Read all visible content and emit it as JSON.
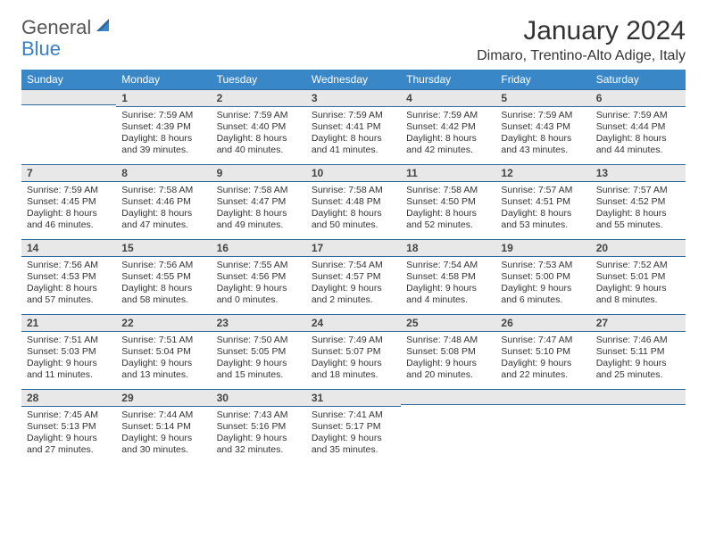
{
  "logo": {
    "general": "General",
    "blue": "Blue"
  },
  "title": "January 2024",
  "location": "Dimaro, Trentino-Alto Adige, Italy",
  "colors": {
    "header_bg": "#3a87c7",
    "header_border": "#2a6aa0",
    "daynum_bg": "#e8e8e8",
    "text": "#333333",
    "logo_gray": "#555555",
    "logo_blue": "#3a7fc4"
  },
  "day_names": [
    "Sunday",
    "Monday",
    "Tuesday",
    "Wednesday",
    "Thursday",
    "Friday",
    "Saturday"
  ],
  "weeks": [
    [
      {
        "num": "",
        "sunrise": "",
        "sunset": "",
        "daylight1": "",
        "daylight2": ""
      },
      {
        "num": "1",
        "sunrise": "Sunrise: 7:59 AM",
        "sunset": "Sunset: 4:39 PM",
        "daylight1": "Daylight: 8 hours",
        "daylight2": "and 39 minutes."
      },
      {
        "num": "2",
        "sunrise": "Sunrise: 7:59 AM",
        "sunset": "Sunset: 4:40 PM",
        "daylight1": "Daylight: 8 hours",
        "daylight2": "and 40 minutes."
      },
      {
        "num": "3",
        "sunrise": "Sunrise: 7:59 AM",
        "sunset": "Sunset: 4:41 PM",
        "daylight1": "Daylight: 8 hours",
        "daylight2": "and 41 minutes."
      },
      {
        "num": "4",
        "sunrise": "Sunrise: 7:59 AM",
        "sunset": "Sunset: 4:42 PM",
        "daylight1": "Daylight: 8 hours",
        "daylight2": "and 42 minutes."
      },
      {
        "num": "5",
        "sunrise": "Sunrise: 7:59 AM",
        "sunset": "Sunset: 4:43 PM",
        "daylight1": "Daylight: 8 hours",
        "daylight2": "and 43 minutes."
      },
      {
        "num": "6",
        "sunrise": "Sunrise: 7:59 AM",
        "sunset": "Sunset: 4:44 PM",
        "daylight1": "Daylight: 8 hours",
        "daylight2": "and 44 minutes."
      }
    ],
    [
      {
        "num": "7",
        "sunrise": "Sunrise: 7:59 AM",
        "sunset": "Sunset: 4:45 PM",
        "daylight1": "Daylight: 8 hours",
        "daylight2": "and 46 minutes."
      },
      {
        "num": "8",
        "sunrise": "Sunrise: 7:58 AM",
        "sunset": "Sunset: 4:46 PM",
        "daylight1": "Daylight: 8 hours",
        "daylight2": "and 47 minutes."
      },
      {
        "num": "9",
        "sunrise": "Sunrise: 7:58 AM",
        "sunset": "Sunset: 4:47 PM",
        "daylight1": "Daylight: 8 hours",
        "daylight2": "and 49 minutes."
      },
      {
        "num": "10",
        "sunrise": "Sunrise: 7:58 AM",
        "sunset": "Sunset: 4:48 PM",
        "daylight1": "Daylight: 8 hours",
        "daylight2": "and 50 minutes."
      },
      {
        "num": "11",
        "sunrise": "Sunrise: 7:58 AM",
        "sunset": "Sunset: 4:50 PM",
        "daylight1": "Daylight: 8 hours",
        "daylight2": "and 52 minutes."
      },
      {
        "num": "12",
        "sunrise": "Sunrise: 7:57 AM",
        "sunset": "Sunset: 4:51 PM",
        "daylight1": "Daylight: 8 hours",
        "daylight2": "and 53 minutes."
      },
      {
        "num": "13",
        "sunrise": "Sunrise: 7:57 AM",
        "sunset": "Sunset: 4:52 PM",
        "daylight1": "Daylight: 8 hours",
        "daylight2": "and 55 minutes."
      }
    ],
    [
      {
        "num": "14",
        "sunrise": "Sunrise: 7:56 AM",
        "sunset": "Sunset: 4:53 PM",
        "daylight1": "Daylight: 8 hours",
        "daylight2": "and 57 minutes."
      },
      {
        "num": "15",
        "sunrise": "Sunrise: 7:56 AM",
        "sunset": "Sunset: 4:55 PM",
        "daylight1": "Daylight: 8 hours",
        "daylight2": "and 58 minutes."
      },
      {
        "num": "16",
        "sunrise": "Sunrise: 7:55 AM",
        "sunset": "Sunset: 4:56 PM",
        "daylight1": "Daylight: 9 hours",
        "daylight2": "and 0 minutes."
      },
      {
        "num": "17",
        "sunrise": "Sunrise: 7:54 AM",
        "sunset": "Sunset: 4:57 PM",
        "daylight1": "Daylight: 9 hours",
        "daylight2": "and 2 minutes."
      },
      {
        "num": "18",
        "sunrise": "Sunrise: 7:54 AM",
        "sunset": "Sunset: 4:58 PM",
        "daylight1": "Daylight: 9 hours",
        "daylight2": "and 4 minutes."
      },
      {
        "num": "19",
        "sunrise": "Sunrise: 7:53 AM",
        "sunset": "Sunset: 5:00 PM",
        "daylight1": "Daylight: 9 hours",
        "daylight2": "and 6 minutes."
      },
      {
        "num": "20",
        "sunrise": "Sunrise: 7:52 AM",
        "sunset": "Sunset: 5:01 PM",
        "daylight1": "Daylight: 9 hours",
        "daylight2": "and 8 minutes."
      }
    ],
    [
      {
        "num": "21",
        "sunrise": "Sunrise: 7:51 AM",
        "sunset": "Sunset: 5:03 PM",
        "daylight1": "Daylight: 9 hours",
        "daylight2": "and 11 minutes."
      },
      {
        "num": "22",
        "sunrise": "Sunrise: 7:51 AM",
        "sunset": "Sunset: 5:04 PM",
        "daylight1": "Daylight: 9 hours",
        "daylight2": "and 13 minutes."
      },
      {
        "num": "23",
        "sunrise": "Sunrise: 7:50 AM",
        "sunset": "Sunset: 5:05 PM",
        "daylight1": "Daylight: 9 hours",
        "daylight2": "and 15 minutes."
      },
      {
        "num": "24",
        "sunrise": "Sunrise: 7:49 AM",
        "sunset": "Sunset: 5:07 PM",
        "daylight1": "Daylight: 9 hours",
        "daylight2": "and 18 minutes."
      },
      {
        "num": "25",
        "sunrise": "Sunrise: 7:48 AM",
        "sunset": "Sunset: 5:08 PM",
        "daylight1": "Daylight: 9 hours",
        "daylight2": "and 20 minutes."
      },
      {
        "num": "26",
        "sunrise": "Sunrise: 7:47 AM",
        "sunset": "Sunset: 5:10 PM",
        "daylight1": "Daylight: 9 hours",
        "daylight2": "and 22 minutes."
      },
      {
        "num": "27",
        "sunrise": "Sunrise: 7:46 AM",
        "sunset": "Sunset: 5:11 PM",
        "daylight1": "Daylight: 9 hours",
        "daylight2": "and 25 minutes."
      }
    ],
    [
      {
        "num": "28",
        "sunrise": "Sunrise: 7:45 AM",
        "sunset": "Sunset: 5:13 PM",
        "daylight1": "Daylight: 9 hours",
        "daylight2": "and 27 minutes."
      },
      {
        "num": "29",
        "sunrise": "Sunrise: 7:44 AM",
        "sunset": "Sunset: 5:14 PM",
        "daylight1": "Daylight: 9 hours",
        "daylight2": "and 30 minutes."
      },
      {
        "num": "30",
        "sunrise": "Sunrise: 7:43 AM",
        "sunset": "Sunset: 5:16 PM",
        "daylight1": "Daylight: 9 hours",
        "daylight2": "and 32 minutes."
      },
      {
        "num": "31",
        "sunrise": "Sunrise: 7:41 AM",
        "sunset": "Sunset: 5:17 PM",
        "daylight1": "Daylight: 9 hours",
        "daylight2": "and 35 minutes."
      },
      {
        "num": "",
        "sunrise": "",
        "sunset": "",
        "daylight1": "",
        "daylight2": ""
      },
      {
        "num": "",
        "sunrise": "",
        "sunset": "",
        "daylight1": "",
        "daylight2": ""
      },
      {
        "num": "",
        "sunrise": "",
        "sunset": "",
        "daylight1": "",
        "daylight2": ""
      }
    ]
  ]
}
